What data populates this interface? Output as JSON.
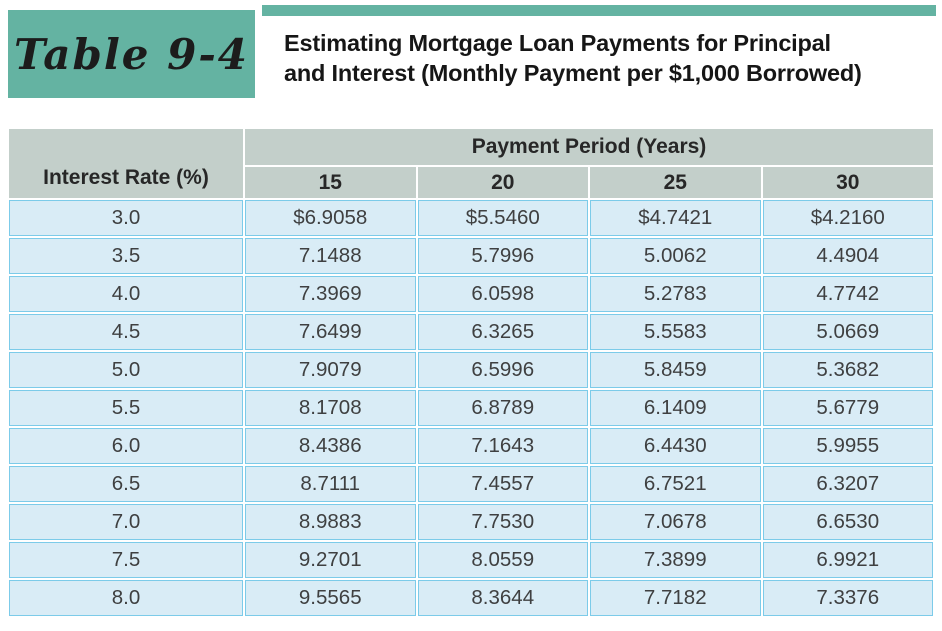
{
  "page": {
    "table_label": "Table 9-4",
    "title_line1": "Estimating Mortgage Loan Payments for Principal",
    "title_line2": "and Interest (Monthly Payment per $1,000 Borrowed)"
  },
  "colors": {
    "teal": "#64b3a2",
    "header_bg": "#c3cfca",
    "row_bg": "#d9ecf6",
    "row_border": "#7ccbe9"
  },
  "chart_data": {
    "type": "table",
    "title": "Estimating Mortgage Loan Payments for Principal and Interest (Monthly Payment per $1,000 Borrowed)",
    "corner_header": "Interest Rate (%)",
    "column_group_header": "Payment Period (Years)",
    "columns": [
      "15",
      "20",
      "25",
      "30"
    ],
    "rows": [
      {
        "rate": "3.0",
        "values": [
          "$6.9058",
          "$5.5460",
          "$4.7421",
          "$4.2160"
        ]
      },
      {
        "rate": "3.5",
        "values": [
          "7.1488",
          "5.7996",
          "5.0062",
          "4.4904"
        ]
      },
      {
        "rate": "4.0",
        "values": [
          "7.3969",
          "6.0598",
          "5.2783",
          "4.7742"
        ]
      },
      {
        "rate": "4.5",
        "values": [
          "7.6499",
          "6.3265",
          "5.5583",
          "5.0669"
        ]
      },
      {
        "rate": "5.0",
        "values": [
          "7.9079",
          "6.5996",
          "5.8459",
          "5.3682"
        ]
      },
      {
        "rate": "5.5",
        "values": [
          "8.1708",
          "6.8789",
          "6.1409",
          "5.6779"
        ]
      },
      {
        "rate": "6.0",
        "values": [
          "8.4386",
          "7.1643",
          "6.4430",
          "5.9955"
        ]
      },
      {
        "rate": "6.5",
        "values": [
          "8.7111",
          "7.4557",
          "6.7521",
          "6.3207"
        ]
      },
      {
        "rate": "7.0",
        "values": [
          "8.9883",
          "7.7530",
          "7.0678",
          "6.6530"
        ]
      },
      {
        "rate": "7.5",
        "values": [
          "9.2701",
          "8.0559",
          "7.3899",
          "6.9921"
        ]
      },
      {
        "rate": "8.0",
        "values": [
          "9.5565",
          "8.3644",
          "7.7182",
          "7.3376"
        ]
      }
    ]
  }
}
